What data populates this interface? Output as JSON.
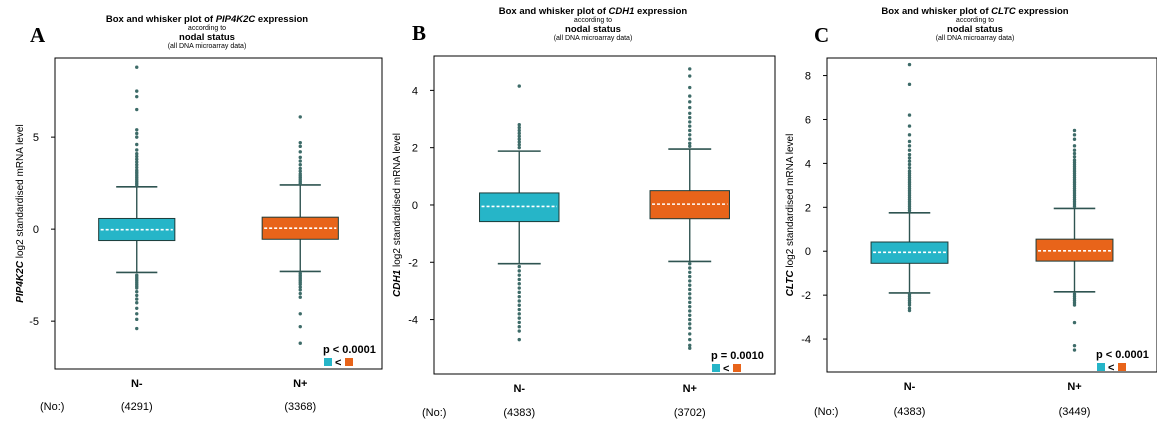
{
  "colors": {
    "n_minus": "#26b5c8",
    "n_plus": "#e8641a",
    "whisker": "#2f5451",
    "outlier": "#3d6b68",
    "median": "#ffffff"
  },
  "chart_data": [
    {
      "type": "box",
      "letter": "A",
      "title_prefix": "Box and whisker plot of ",
      "gene": "PIP4K2C",
      "title_suffix": " expression",
      "according": "according to",
      "grouping": "nodal status",
      "source": "(all DNA microarray data)",
      "ylabel_gene": "PIP4K2C",
      "ylabel_rest": " log2 standardised mRNA level",
      "ylim": [
        -7.6,
        9.3
      ],
      "yticks": [
        5,
        0,
        -5
      ],
      "ytick_labels": [
        "5",
        "0",
        "-5"
      ],
      "pvalue": "p < 0.0001",
      "no_label": "(No:)",
      "groups": [
        {
          "label": "N-",
          "count": "(4291)",
          "q1": -0.62,
          "median": -0.03,
          "q3": 0.58,
          "whisker_low": -2.35,
          "whisker_high": 2.3,
          "outliers": [
            -2.5,
            -2.6,
            -2.7,
            -2.8,
            -2.9,
            -3.0,
            -3.1,
            -3.2,
            -3.4,
            -3.6,
            -3.8,
            -4.0,
            -4.3,
            -4.6,
            -4.9,
            -5.4,
            2.4,
            2.5,
            2.6,
            2.7,
            2.8,
            2.9,
            3.0,
            3.1,
            3.2,
            3.35,
            3.5,
            3.65,
            3.8,
            3.95,
            4.1,
            4.3,
            4.6,
            5.0,
            5.2,
            5.4,
            6.5,
            7.2,
            7.5,
            8.8
          ]
        },
        {
          "label": "N+",
          "count": "(3368)",
          "q1": -0.55,
          "median": 0.05,
          "q3": 0.65,
          "whisker_low": -2.3,
          "whisker_high": 2.4,
          "outliers": [
            -2.4,
            -2.5,
            -2.6,
            -2.7,
            -2.8,
            -2.9,
            -3.0,
            -3.15,
            -3.3,
            -3.5,
            -3.7,
            -4.6,
            -5.3,
            -6.2,
            2.5,
            2.6,
            2.7,
            2.8,
            2.9,
            3.0,
            3.15,
            3.3,
            3.5,
            3.7,
            3.9,
            4.2,
            4.5,
            4.7,
            6.1
          ]
        }
      ]
    },
    {
      "type": "box",
      "letter": "B",
      "title_prefix": "Box and whisker plot of ",
      "gene": "CDH1",
      "title_suffix": " expression",
      "according": "according to",
      "grouping": "nodal status",
      "source": "(all DNA microarray data)",
      "ylabel_gene": "CDH1",
      "ylabel_rest": " log2 standardised mRNA level",
      "ylim": [
        -5.9,
        5.2
      ],
      "yticks": [
        4,
        2,
        0,
        -2,
        -4
      ],
      "ytick_labels": [
        "4",
        "2",
        "0",
        "-2",
        "-4"
      ],
      "pvalue": "p = 0.0010",
      "no_label": "(No:)",
      "groups": [
        {
          "label": "N-",
          "count": "(4383)",
          "q1": -0.58,
          "median": -0.05,
          "q3": 0.42,
          "whisker_low": -2.05,
          "whisker_high": 1.88,
          "outliers": [
            -2.15,
            -2.3,
            -2.45,
            -2.6,
            -2.75,
            -2.9,
            -3.05,
            -3.2,
            -3.35,
            -3.5,
            -3.65,
            -3.8,
            -3.95,
            -4.1,
            -4.25,
            -4.4,
            -4.7,
            2.0,
            2.1,
            2.2,
            2.3,
            2.4,
            2.5,
            2.6,
            2.7,
            2.8,
            4.15
          ]
        },
        {
          "label": "N+",
          "count": "(3702)",
          "q1": -0.48,
          "median": 0.03,
          "q3": 0.5,
          "whisker_low": -1.97,
          "whisker_high": 1.95,
          "outliers": [
            -2.05,
            -2.2,
            -2.35,
            -2.5,
            -2.65,
            -2.8,
            -2.95,
            -3.1,
            -3.25,
            -3.4,
            -3.55,
            -3.7,
            -3.85,
            -4.0,
            -4.15,
            -4.3,
            -4.5,
            -4.7,
            -4.9,
            -5.0,
            2.05,
            2.15,
            2.3,
            2.45,
            2.6,
            2.75,
            2.9,
            3.05,
            3.2,
            3.4,
            3.6,
            3.8,
            4.1,
            4.5,
            4.75
          ]
        }
      ]
    },
    {
      "type": "box",
      "letter": "C",
      "title_prefix": "Box and whisker plot of ",
      "gene": "CLTC",
      "title_suffix": " expression",
      "according": "according to",
      "grouping": "nodal status",
      "source": "(all DNA microarray data)",
      "ylabel_gene": "CLTC",
      "ylabel_rest": " log2 standardised mRNA level",
      "ylim": [
        -5.5,
        8.8
      ],
      "yticks": [
        8,
        6,
        4,
        2,
        0,
        -2,
        -4
      ],
      "ytick_labels": [
        "8",
        "6",
        "4",
        "2",
        "0",
        "-2",
        "-4"
      ],
      "pvalue": "p < 0.0001",
      "no_label": "(No:)",
      "groups": [
        {
          "label": "N-",
          "count": "(4383)",
          "q1": -0.55,
          "median": -0.05,
          "q3": 0.42,
          "whisker_low": -1.9,
          "whisker_high": 1.75,
          "outliers": [
            -1.95,
            -2.05,
            -2.15,
            -2.25,
            -2.35,
            -2.45,
            -2.6,
            -2.7,
            1.85,
            1.95,
            2.05,
            2.15,
            2.25,
            2.35,
            2.45,
            2.55,
            2.65,
            2.75,
            2.85,
            2.95,
            3.05,
            3.15,
            3.25,
            3.35,
            3.45,
            3.55,
            3.65,
            3.8,
            3.95,
            4.1,
            4.25,
            4.4,
            4.6,
            4.8,
            5.0,
            5.3,
            5.7,
            6.2,
            7.6,
            8.5
          ]
        },
        {
          "label": "N+",
          "count": "(3449)",
          "q1": -0.45,
          "median": 0.02,
          "q3": 0.55,
          "whisker_low": -1.85,
          "whisker_high": 1.95,
          "outliers": [
            -1.95,
            -2.05,
            -2.15,
            -2.25,
            -2.35,
            -2.45,
            -3.25,
            -4.3,
            -4.5,
            2.05,
            2.15,
            2.25,
            2.35,
            2.45,
            2.55,
            2.65,
            2.75,
            2.85,
            2.95,
            3.05,
            3.15,
            3.25,
            3.35,
            3.45,
            3.55,
            3.65,
            3.75,
            3.85,
            3.95,
            4.05,
            4.15,
            4.3,
            4.45,
            4.6,
            4.8,
            5.1,
            5.3,
            5.5
          ]
        }
      ]
    }
  ]
}
